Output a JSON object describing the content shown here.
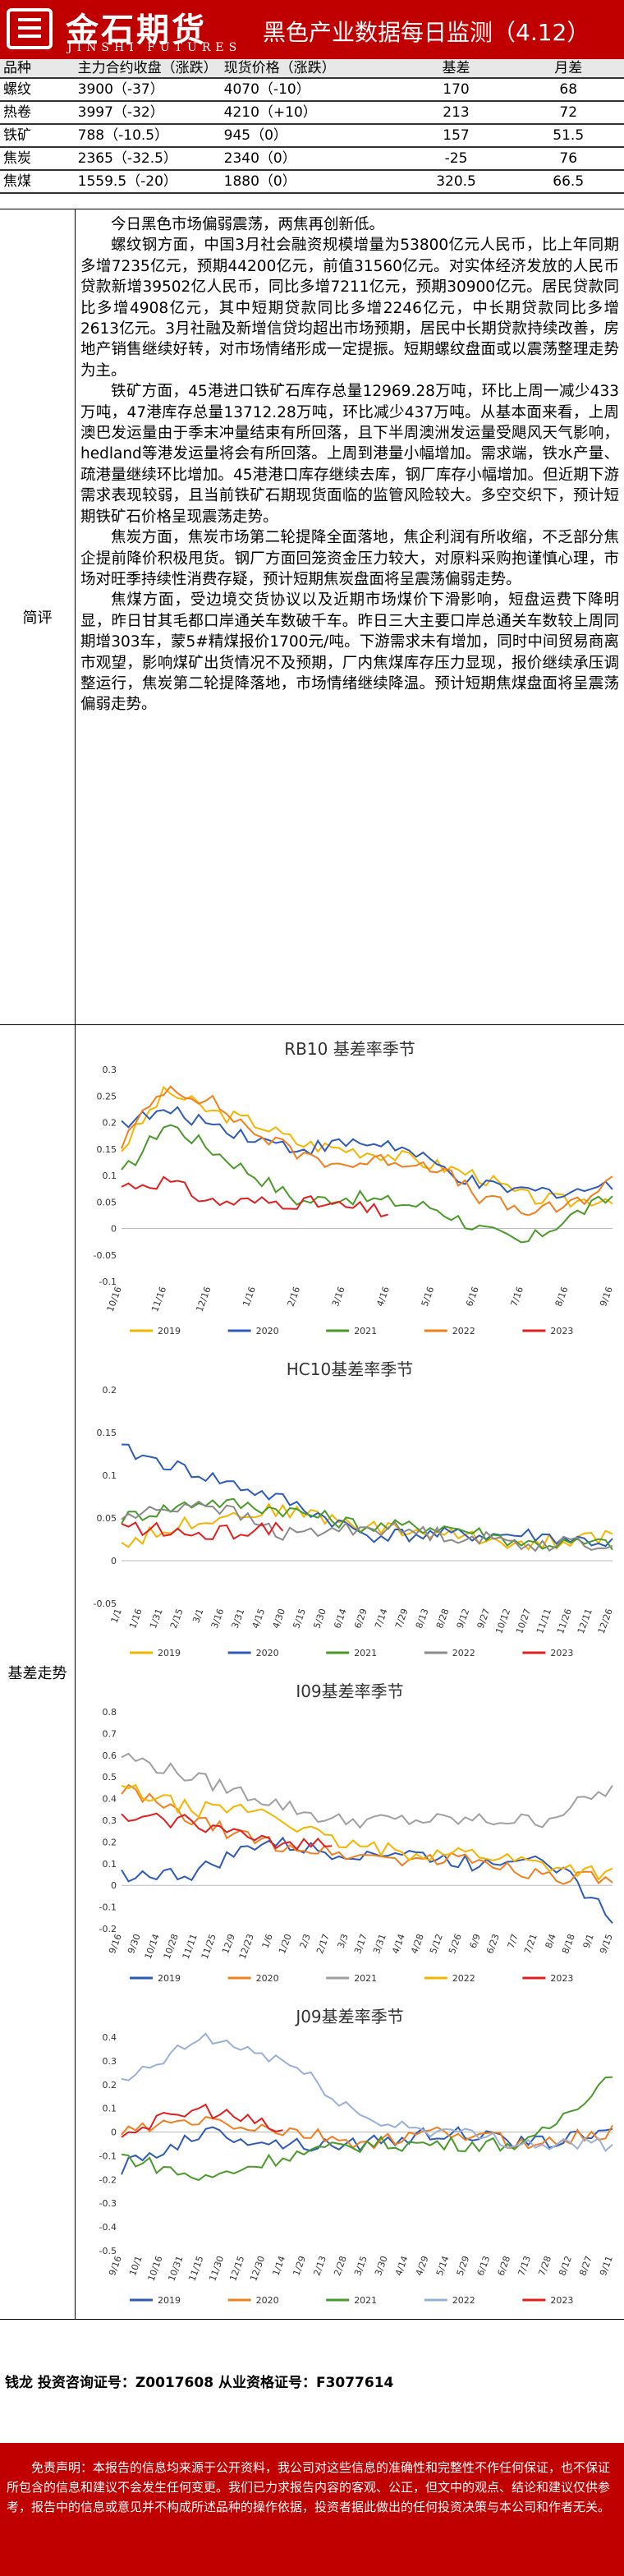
{
  "header": {
    "logo_cn": "金石期货",
    "logo_en": "JINSHI FUTURES",
    "title": "黑色产业数据每日监测（4.12）"
  },
  "prices": {
    "columns": [
      "品种",
      "主力合约收盘（涨跌）",
      "现货价格（涨跌）",
      "基差",
      "月差"
    ],
    "rows": [
      [
        "螺纹",
        "3900（-37）",
        "4070（-10）",
        "170",
        "68"
      ],
      [
        "热卷",
        "3997（-32）",
        "4210（+10）",
        "213",
        "72"
      ],
      [
        "铁矿",
        "788（-10.5）",
        "945（0）",
        "157",
        "51.5"
      ],
      [
        "焦炭",
        "2365（-32.5）",
        "2340（0）",
        "-25",
        "76"
      ],
      [
        "焦煤",
        "1559.5（-20）",
        "1880（0）",
        "320.5",
        "66.5"
      ]
    ]
  },
  "comment": {
    "label": "简评",
    "paragraphs": [
      "今日黑色市场偏弱震荡，两焦再创新低。",
      "螺纹钢方面，中国3月社会融资规模增量为53800亿元人民币，比上年同期多增7235亿元，预期44200亿元，前值31560亿元。对实体经济发放的人民币贷款新增39502亿人民币，同比多增7211亿元，预期30900亿元。居民贷款同比多增4908亿元，其中短期贷款同比多增2246亿元，中长期贷款同比多增2613亿元。3月社融及新增信贷均超出市场预期，居民中长期贷款持续改善，房地产销售继续好转，对市场情绪形成一定提振。短期螺纹盘面或以震荡整理走势为主。",
      "铁矿方面，45港进口铁矿石库存总量12969.28万吨，环比上周一减少433万吨，47港库存总量13712.28万吨，环比减少437万吨。从基本面来看，上周澳巴发运量由于季末冲量结束有所回落，且下半周澳洲发运量受飓风天气影响，hedland等港发运量将会有所回落。上周到港量小幅增加。需求端，铁水产量、疏港量继续环比增加。45港港口库存继续去库，钢厂库存小幅增加。但近期下游需求表现较弱，且当前铁矿石期现货面临的监管风险较大。多空交织下，预计短期铁矿石价格呈现震荡走势。",
      "焦炭方面，焦炭市场第二轮提降全面落地，焦企利润有所收缩，不乏部分焦企提前降价积极甩货。钢厂方面回笼资金压力较大，对原料采购抱谨慎心理，市场对旺季持续性消费存疑，预计短期焦炭盘面将呈震荡偏弱走势。",
      "焦煤方面，受边境交货协议以及近期市场煤价下滑影响，短盘运费下降明显，昨日甘其毛都口岸通关车数破千车。昨日三大主要口岸总通关车数较上周同期增303车，蒙5#精煤报价1700元/吨。下游需求未有增加，同时中间贸易商离市观望，影响煤矿出货情况不及预期，厂内焦煤库存压力显现，报价继续承压调整运行，焦炭第二轮提降落地，市场情绪继续降温。预计短期焦煤盘面将呈震荡偏弱走势。"
    ]
  },
  "trend": {
    "label": "基差走势",
    "charts": [
      {
        "title": "RB10 基差率季节",
        "years": [
          "2019",
          "2020",
          "2021",
          "2022",
          "2023"
        ],
        "colors": [
          "#f5b400",
          "#2e5ab8",
          "#4a9a2a",
          "#f07f1e",
          "#e02020"
        ],
        "xticks": [
          "10/16",
          "11/16",
          "12/16",
          "1/16",
          "2/16",
          "3/16",
          "4/16",
          "5/16",
          "6/16",
          "7/16",
          "8/16",
          "9/16"
        ],
        "yticks": [
          "0.3",
          "0.25",
          "0.2",
          "0.15",
          "0.1",
          "0.05",
          "0",
          "-0.05",
          "-0.1"
        ],
        "ymin": -0.1,
        "ymax": 0.3,
        "legend_order": [
          "2019",
          "2020",
          "2021",
          "2022",
          "2023"
        ],
        "legend_colors": [
          "#f5b400",
          "#2e5ab8",
          "#4a9a2a",
          "#f07f1e",
          "#e02020"
        ]
      },
      {
        "title": "HC10基差率季节",
        "years": [
          "2019",
          "2020",
          "2021",
          "2022",
          "2023"
        ],
        "colors": [
          "#f5b400",
          "#2e5ab8",
          "#4a9a2a",
          "#8a8a8a",
          "#e02020"
        ],
        "xticks": [
          "1/1",
          "1/16",
          "1/31",
          "2/15",
          "3/1",
          "3/16",
          "3/31",
          "4/15",
          "4/30",
          "5/15",
          "5/30",
          "6/14",
          "6/29",
          "7/14",
          "7/29",
          "8/13",
          "8/28",
          "9/12",
          "9/27",
          "10/12",
          "10/27",
          "11/11",
          "11/26",
          "12/11",
          "12/26"
        ],
        "yticks": [
          "0.2",
          "0.15",
          "0.1",
          "0.05",
          "0",
          "-0.05"
        ],
        "ymin": -0.05,
        "ymax": 0.2,
        "legend_order": [
          "2019",
          "2020",
          "2021",
          "2022",
          "2023"
        ],
        "legend_colors": [
          "#f5b400",
          "#2e5ab8",
          "#4a9a2a",
          "#8a8a8a",
          "#e02020"
        ]
      },
      {
        "title": "I09基差率季节",
        "years": [
          "2019",
          "2020",
          "2021",
          "2022",
          "2023"
        ],
        "colors": [
          "#2e5ab8",
          "#f07f1e",
          "#a0a0a0",
          "#f5b400",
          "#e02020"
        ],
        "xticks": [
          "9/16",
          "9/30",
          "10/14",
          "10/28",
          "11/11",
          "11/25",
          "12/9",
          "12/23",
          "1/6",
          "1/20",
          "2/3",
          "2/17",
          "3/3",
          "3/17",
          "3/31",
          "4/14",
          "4/28",
          "5/12",
          "5/26",
          "6/9",
          "6/23",
          "7/7",
          "7/21",
          "8/4",
          "8/18",
          "9/1",
          "9/15"
        ],
        "yticks": [
          "0.8",
          "0.7",
          "0.6",
          "0.5",
          "0.4",
          "0.3",
          "0.2",
          "0.1",
          "0",
          "-0.1",
          "-0.2"
        ],
        "ymin": -0.2,
        "ymax": 0.8,
        "legend_order": [
          "2019",
          "2020",
          "2021",
          "2022",
          "2023"
        ],
        "legend_colors": [
          "#2e5ab8",
          "#f07f1e",
          "#a0a0a0",
          "#f5b400",
          "#e02020"
        ]
      },
      {
        "title": "J09基差率季节",
        "years": [
          "2019",
          "2020",
          "2021",
          "2022",
          "2023"
        ],
        "colors": [
          "#2e5ab8",
          "#f07f1e",
          "#4a9a2a",
          "#9ab0d8",
          "#e02020"
        ],
        "xticks": [
          "9/16",
          "10/1",
          "10/16",
          "10/31",
          "11/15",
          "11/30",
          "12/15",
          "12/30",
          "1/14",
          "1/29",
          "2/13",
          "2/28",
          "3/15",
          "3/30",
          "4/14",
          "4/29",
          "5/14",
          "5/29",
          "6/13",
          "6/28",
          "7/13",
          "7/28",
          "8/12",
          "8/27",
          "9/11"
        ],
        "yticks": [
          "0.4",
          "0.3",
          "0.2",
          "0.1",
          "0",
          "-0.1",
          "-0.2",
          "-0.3",
          "-0.4",
          "-0.5"
        ],
        "ymin": -0.5,
        "ymax": 0.4,
        "legend_order": [
          "2019",
          "2020",
          "2021",
          "2022",
          "2023"
        ],
        "legend_colors": [
          "#2e5ab8",
          "#f07f1e",
          "#4a9a2a",
          "#9ab0d8",
          "#e02020"
        ]
      }
    ]
  },
  "chart_data": [
    {
      "type": "line",
      "title": "RB10 基差率季节",
      "x": [
        "10/16",
        "11/16",
        "12/16",
        "1/16",
        "2/16",
        "3/16",
        "4/16",
        "5/16",
        "6/16",
        "7/16",
        "8/16",
        "9/16"
      ],
      "ylim": [
        -0.1,
        0.3
      ],
      "series": [
        {
          "name": "2019",
          "values": [
            0.15,
            0.26,
            0.22,
            0.2,
            0.16,
            0.15,
            0.14,
            0.12,
            0.1,
            0.06,
            0.05,
            0.06
          ]
        },
        {
          "name": "2020",
          "values": [
            0.2,
            0.22,
            0.2,
            0.17,
            0.15,
            0.16,
            0.16,
            0.12,
            0.08,
            0.07,
            0.07,
            0.08
          ]
        },
        {
          "name": "2021",
          "values": [
            0.1,
            0.2,
            0.15,
            0.1,
            0.05,
            0.06,
            0.05,
            0.04,
            0.0,
            -0.03,
            0.02,
            0.06
          ]
        },
        {
          "name": "2022",
          "values": [
            0.16,
            0.27,
            0.24,
            0.18,
            0.14,
            0.12,
            0.13,
            0.12,
            0.06,
            0.03,
            0.04,
            0.09
          ]
        },
        {
          "name": "2023",
          "values": [
            0.08,
            0.09,
            0.05,
            0.05,
            0.05,
            0.04,
            0.03,
            null,
            null,
            null,
            null,
            null
          ]
        }
      ]
    },
    {
      "type": "line",
      "title": "HC10基差率季节",
      "x": [
        "1/1",
        "3/1",
        "5/1",
        "7/1",
        "9/1",
        "11/1",
        "12/26"
      ],
      "ylim": [
        -0.05,
        0.2
      ],
      "series": [
        {
          "name": "2019",
          "values": [
            0.02,
            0.05,
            0.06,
            0.04,
            0.03,
            0.02,
            0.03
          ]
        },
        {
          "name": "2020",
          "values": [
            0.13,
            0.1,
            0.07,
            0.03,
            0.03,
            0.03,
            0.02
          ]
        },
        {
          "name": "2021",
          "values": [
            0.05,
            0.07,
            0.06,
            0.04,
            0.04,
            0.02,
            0.02
          ]
        },
        {
          "name": "2022",
          "values": [
            0.05,
            0.07,
            0.03,
            0.04,
            0.03,
            0.02,
            0.02
          ]
        },
        {
          "name": "2023",
          "values": [
            0.04,
            0.03,
            0.04,
            null,
            null,
            null,
            null
          ]
        }
      ]
    },
    {
      "type": "line",
      "title": "I09基差率季节",
      "x": [
        "9/16",
        "11/11",
        "1/6",
        "3/3",
        "4/28",
        "6/23",
        "8/18",
        "9/15"
      ],
      "ylim": [
        -0.2,
        0.8
      ],
      "series": [
        {
          "name": "2019",
          "values": [
            0.05,
            0.05,
            0.2,
            0.15,
            0.15,
            0.1,
            0.15,
            -0.15
          ]
        },
        {
          "name": "2020",
          "values": [
            0.45,
            0.3,
            0.2,
            0.15,
            0.12,
            0.12,
            0.05,
            0.02
          ]
        },
        {
          "name": "2021",
          "values": [
            0.6,
            0.5,
            0.4,
            0.3,
            0.3,
            0.3,
            0.3,
            0.45
          ]
        },
        {
          "name": "2022",
          "values": [
            0.45,
            0.35,
            0.35,
            0.2,
            0.15,
            0.15,
            0.1,
            0.05
          ]
        },
        {
          "name": "2023",
          "values": [
            0.3,
            0.3,
            0.2,
            0.2,
            null,
            null,
            null,
            null
          ]
        }
      ]
    },
    {
      "type": "line",
      "title": "J09基差率季节",
      "x": [
        "9/16",
        "11/15",
        "1/14",
        "3/15",
        "5/14",
        "7/13",
        "9/11"
      ],
      "ylim": [
        -0.5,
        0.4
      ],
      "series": [
        {
          "name": "2019",
          "values": [
            -0.15,
            0.0,
            -0.05,
            -0.05,
            0.0,
            -0.05,
            0.0
          ]
        },
        {
          "name": "2020",
          "values": [
            0.0,
            0.05,
            0.0,
            -0.05,
            0.0,
            -0.05,
            0.0
          ]
        },
        {
          "name": "2021",
          "values": [
            -0.1,
            -0.2,
            -0.1,
            -0.05,
            -0.05,
            -0.05,
            0.25
          ]
        },
        {
          "name": "2022",
          "values": [
            0.2,
            0.4,
            0.3,
            0.05,
            0.0,
            -0.05,
            -0.05
          ]
        },
        {
          "name": "2023",
          "values": [
            0.0,
            0.1,
            0.0,
            null,
            null,
            null,
            null
          ]
        }
      ]
    }
  ],
  "contact": "钱龙 投资咨询证号：Z0017608 从业资格证号：F3077614",
  "disclaimer": "免责声明：本报告的信息均来源于公开资料，我公司对这些信息的准确性和完整性不作任何保证，也不保证所包含的信息和建议不会发生任何变更。我们已力求报告内容的客观、公正，但文中的观点、结论和建议仅供参考，报告中的信息或意见并不构成所述品种的操作依据，投资者据此做出的任何投资决策与本公司和作者无关。"
}
